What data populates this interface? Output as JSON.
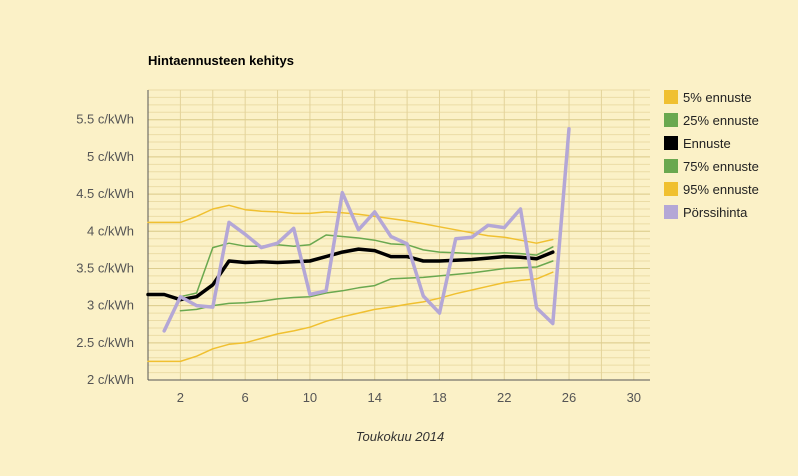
{
  "chart_data": {
    "type": "line",
    "title": "Hintaennusteen kehitys",
    "xlabel": "Toukokuu 2014",
    "ylabel": "",
    "xlim": [
      0,
      31
    ],
    "ylim": [
      2,
      5.9
    ],
    "x_ticks": [
      2,
      6,
      10,
      14,
      18,
      22,
      26,
      30
    ],
    "y_ticks": [
      {
        "value": 2,
        "label": "2 c/kWh"
      },
      {
        "value": 2.5,
        "label": "2.5 c/kWh"
      },
      {
        "value": 3,
        "label": "3 c/kWh"
      },
      {
        "value": 3.5,
        "label": "3.5 c/kWh"
      },
      {
        "value": 4,
        "label": "4 c/kWh"
      },
      {
        "value": 4.5,
        "label": "4.5 c/kWh"
      },
      {
        "value": 5,
        "label": "5 c/kWh"
      },
      {
        "value": 5.5,
        "label": "5.5 c/kWh"
      }
    ],
    "grid": true,
    "legend_position": "right",
    "x": [
      0,
      1,
      2,
      3,
      4,
      5,
      6,
      7,
      8,
      9,
      10,
      11,
      12,
      13,
      14,
      15,
      16,
      17,
      18,
      19,
      20,
      21,
      22,
      23,
      24,
      25
    ],
    "series": [
      {
        "name": "5% ennuste",
        "color": "#f0c030",
        "width": 1.5,
        "values": [
          2.25,
          2.25,
          2.25,
          2.32,
          2.42,
          2.48,
          2.5,
          2.56,
          2.62,
          2.66,
          2.71,
          2.79,
          2.85,
          2.9,
          2.95,
          2.98,
          3.02,
          3.05,
          3.1,
          3.16,
          3.21,
          3.26,
          3.31,
          3.34,
          3.36,
          3.45
        ]
      },
      {
        "name": "25% ennuste",
        "color": "#6aa84f",
        "width": 1.5,
        "values": [
          null,
          null,
          2.93,
          2.95,
          3.0,
          3.03,
          3.04,
          3.06,
          3.09,
          3.11,
          3.12,
          3.17,
          3.2,
          3.24,
          3.27,
          3.36,
          3.37,
          3.38,
          3.4,
          3.42,
          3.44,
          3.47,
          3.5,
          3.51,
          3.52,
          3.6
        ]
      },
      {
        "name": "Ennuste",
        "color": "#000000",
        "width": 3.5,
        "values": [
          3.15,
          3.15,
          3.08,
          3.12,
          3.28,
          3.6,
          3.58,
          3.59,
          3.58,
          3.59,
          3.6,
          3.66,
          3.72,
          3.76,
          3.74,
          3.66,
          3.66,
          3.6,
          3.6,
          3.61,
          3.62,
          3.64,
          3.66,
          3.65,
          3.63,
          3.72
        ]
      },
      {
        "name": "75% ennuste",
        "color": "#6aa84f",
        "width": 1.5,
        "values": [
          null,
          null,
          3.12,
          3.17,
          3.78,
          3.84,
          3.8,
          3.8,
          3.82,
          3.8,
          3.82,
          3.95,
          3.93,
          3.91,
          3.88,
          3.83,
          3.82,
          3.75,
          3.72,
          3.71,
          3.7,
          3.7,
          3.71,
          3.7,
          3.68,
          3.79
        ]
      },
      {
        "name": "95% ennuste",
        "color": "#f0c030",
        "width": 1.5,
        "values": [
          4.12,
          4.12,
          4.12,
          4.2,
          4.3,
          4.35,
          4.29,
          4.27,
          4.26,
          4.24,
          4.24,
          4.26,
          4.25,
          4.23,
          4.2,
          4.17,
          4.14,
          4.1,
          4.06,
          4.02,
          3.98,
          3.94,
          3.92,
          3.88,
          3.84,
          3.89
        ]
      },
      {
        "name": "Pörssihinta",
        "color": "#b4a7d6",
        "width": 3.5,
        "x": [
          1,
          2,
          3,
          4,
          5,
          6,
          7,
          8,
          9,
          10,
          11,
          12,
          13,
          14,
          15,
          16,
          17,
          18,
          19,
          20,
          21,
          22,
          23,
          24,
          25,
          26
        ],
        "values": [
          2.66,
          3.12,
          3.0,
          2.98,
          4.12,
          3.96,
          3.78,
          3.84,
          4.04,
          3.15,
          3.2,
          4.52,
          4.02,
          4.26,
          3.93,
          3.83,
          3.13,
          2.9,
          3.9,
          3.92,
          4.08,
          4.05,
          4.3,
          2.97,
          2.76,
          5.38
        ]
      }
    ]
  }
}
